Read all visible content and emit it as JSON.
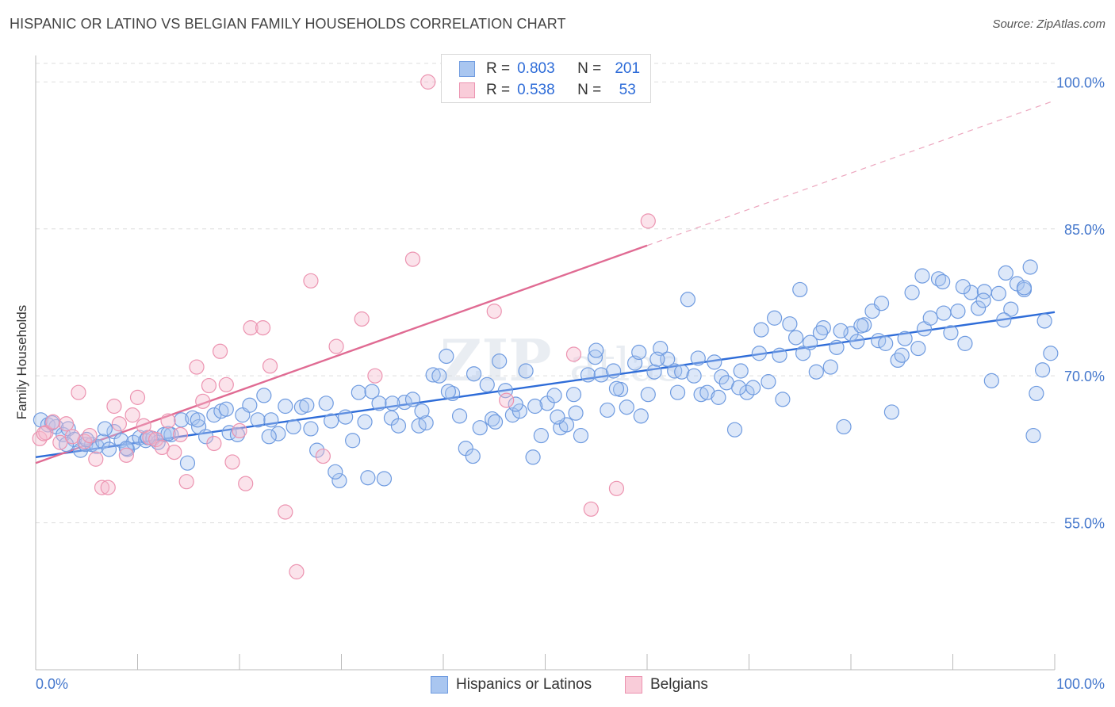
{
  "title": "HISPANIC OR LATINO VS BELGIAN FAMILY HOUSEHOLDS CORRELATION CHART",
  "source": "Source: ZipAtlas.com",
  "watermark": "ZIPatlas",
  "colors": {
    "blue": "#2e6cd8",
    "blue_fill": "#a9c6f0",
    "pink": "#e06b93",
    "pink_fill": "#f5b9cc",
    "grid": "#dddddd",
    "tick_text": "#4477cc"
  },
  "legend": {
    "rows": [
      {
        "r_key": "R =",
        "r_value": "0.803",
        "n_key": "N =",
        "n_value": "201",
        "color": "blue"
      },
      {
        "r_key": "R =",
        "r_value": "0.538",
        "n_key": "N =",
        "n_value": "53",
        "color": "pink"
      }
    ]
  },
  "bottom_legend": [
    "Hispanics or Latinos",
    "Belgians"
  ],
  "chart_data": {
    "type": "scatter",
    "title": "HISPANIC OR LATINO VS BELGIAN FAMILY HOUSEHOLDS CORRELATION CHART",
    "xlabel": "",
    "ylabel": "Family Households",
    "xlim": [
      0,
      100
    ],
    "ylim": [
      40,
      102
    ],
    "x_tick_labels": [
      "0.0%",
      "100.0%"
    ],
    "y_tick_labels": [
      "55.0%",
      "70.0%",
      "85.0%",
      "100.0%"
    ],
    "y_ticks": [
      55,
      70,
      85,
      100
    ],
    "grid": true,
    "legend_position": "top-center",
    "series": [
      {
        "name": "Hispanics or Latinos",
        "color": "blue",
        "trend": {
          "x0": 0,
          "y0": 61.7,
          "x1": 100,
          "y1": 76.5
        },
        "points": [
          [
            0.5,
            65.5
          ],
          [
            1.2,
            65.0
          ],
          [
            2.0,
            64.8
          ],
          [
            2.7,
            64.0
          ],
          [
            3.2,
            64.6
          ],
          [
            3.8,
            63.5
          ],
          [
            4.4,
            62.4
          ],
          [
            4.9,
            63.0
          ],
          [
            5.5,
            63.0
          ],
          [
            6.0,
            62.8
          ],
          [
            6.6,
            63.3
          ],
          [
            7.2,
            62.5
          ],
          [
            7.7,
            64.3
          ],
          [
            8.4,
            63.4
          ],
          [
            9.0,
            62.5
          ],
          [
            9.6,
            63.2
          ],
          [
            10.2,
            63.7
          ],
          [
            10.8,
            63.4
          ],
          [
            11.5,
            63.6
          ],
          [
            12.0,
            63.2
          ],
          [
            12.6,
            64.0
          ],
          [
            13.3,
            64.0
          ],
          [
            14.3,
            65.5
          ],
          [
            14.9,
            61.1
          ],
          [
            15.4,
            65.7
          ],
          [
            16.0,
            64.8
          ],
          [
            16.7,
            63.8
          ],
          [
            17.5,
            66.0
          ],
          [
            18.2,
            66.4
          ],
          [
            19.0,
            64.2
          ],
          [
            19.8,
            64.0
          ],
          [
            20.3,
            66.0
          ],
          [
            21.0,
            67.0
          ],
          [
            21.8,
            65.5
          ],
          [
            22.4,
            68.0
          ],
          [
            23.1,
            65.5
          ],
          [
            23.8,
            64.1
          ],
          [
            24.5,
            66.9
          ],
          [
            25.3,
            64.8
          ],
          [
            26.1,
            66.8
          ],
          [
            27.0,
            64.6
          ],
          [
            27.6,
            62.4
          ],
          [
            28.5,
            67.2
          ],
          [
            29.0,
            65.4
          ],
          [
            29.8,
            59.3
          ],
          [
            30.4,
            65.8
          ],
          [
            31.1,
            63.4
          ],
          [
            31.7,
            68.3
          ],
          [
            32.3,
            65.3
          ],
          [
            33.0,
            68.4
          ],
          [
            33.7,
            67.2
          ],
          [
            34.2,
            59.5
          ],
          [
            34.9,
            65.7
          ],
          [
            35.6,
            64.9
          ],
          [
            36.2,
            67.3
          ],
          [
            37.0,
            67.6
          ],
          [
            37.6,
            64.9
          ],
          [
            38.3,
            65.2
          ],
          [
            39.0,
            70.1
          ],
          [
            39.6,
            70.0
          ],
          [
            40.3,
            72.0
          ],
          [
            40.9,
            68.2
          ],
          [
            41.6,
            65.9
          ],
          [
            42.2,
            62.6
          ],
          [
            42.9,
            61.8
          ],
          [
            43.6,
            64.7
          ],
          [
            44.3,
            69.1
          ],
          [
            44.8,
            65.6
          ],
          [
            45.5,
            71.5
          ],
          [
            46.1,
            68.5
          ],
          [
            46.8,
            66.0
          ],
          [
            47.5,
            66.4
          ],
          [
            48.1,
            70.5
          ],
          [
            48.8,
            61.7
          ],
          [
            49.6,
            63.9
          ],
          [
            50.2,
            67.2
          ],
          [
            50.9,
            68.0
          ],
          [
            51.5,
            64.7
          ],
          [
            52.1,
            65.0
          ],
          [
            52.8,
            68.1
          ],
          [
            53.5,
            63.9
          ],
          [
            54.2,
            70.1
          ],
          [
            54.9,
            71.9
          ],
          [
            55.5,
            70.1
          ],
          [
            56.1,
            66.5
          ],
          [
            56.7,
            70.5
          ],
          [
            57.4,
            68.6
          ],
          [
            58.0,
            66.8
          ],
          [
            58.8,
            71.3
          ],
          [
            59.4,
            65.9
          ],
          [
            60.1,
            68.1
          ],
          [
            60.7,
            70.4
          ],
          [
            61.3,
            72.8
          ],
          [
            62.0,
            71.7
          ],
          [
            62.7,
            70.5
          ],
          [
            63.4,
            70.4
          ],
          [
            64.0,
            77.8
          ],
          [
            64.6,
            70.0
          ],
          [
            65.3,
            68.1
          ],
          [
            65.9,
            68.3
          ],
          [
            66.6,
            71.4
          ],
          [
            67.3,
            69.9
          ],
          [
            67.8,
            69.3
          ],
          [
            68.6,
            64.5
          ],
          [
            69.2,
            70.5
          ],
          [
            69.8,
            68.3
          ],
          [
            70.4,
            68.8
          ],
          [
            71.2,
            74.7
          ],
          [
            71.9,
            69.4
          ],
          [
            72.5,
            75.9
          ],
          [
            73.3,
            67.6
          ],
          [
            74.0,
            75.3
          ],
          [
            74.6,
            73.9
          ],
          [
            75.3,
            72.3
          ],
          [
            76.0,
            73.4
          ],
          [
            76.6,
            70.4
          ],
          [
            77.3,
            74.9
          ],
          [
            78.0,
            70.9
          ],
          [
            78.6,
            72.9
          ],
          [
            79.3,
            64.8
          ],
          [
            80.0,
            74.3
          ],
          [
            80.6,
            73.5
          ],
          [
            81.3,
            75.2
          ],
          [
            82.1,
            76.6
          ],
          [
            82.7,
            73.6
          ],
          [
            83.4,
            73.3
          ],
          [
            84.0,
            66.3
          ],
          [
            84.6,
            71.6
          ],
          [
            85.3,
            73.8
          ],
          [
            86.0,
            78.5
          ],
          [
            86.6,
            72.8
          ],
          [
            87.2,
            74.8
          ],
          [
            87.8,
            75.9
          ],
          [
            88.6,
            79.9
          ],
          [
            89.1,
            76.4
          ],
          [
            89.8,
            74.4
          ],
          [
            90.5,
            76.6
          ],
          [
            91.2,
            73.3
          ],
          [
            91.8,
            78.5
          ],
          [
            92.5,
            76.9
          ],
          [
            93.1,
            78.6
          ],
          [
            93.8,
            69.5
          ],
          [
            94.5,
            78.4
          ],
          [
            95.2,
            80.5
          ],
          [
            95.7,
            76.8
          ],
          [
            96.3,
            79.4
          ],
          [
            97.0,
            78.8
          ],
          [
            97.6,
            81.1
          ],
          [
            98.2,
            68.2
          ],
          [
            99.0,
            75.6
          ],
          [
            99.6,
            72.3
          ],
          [
            1.6,
            65.2
          ],
          [
            3.0,
            63.0
          ],
          [
            5.0,
            63.5
          ],
          [
            6.8,
            64.6
          ],
          [
            8.9,
            62.6
          ],
          [
            11.0,
            63.7
          ],
          [
            13.0,
            64.1
          ],
          [
            15.9,
            65.5
          ],
          [
            18.7,
            66.6
          ],
          [
            22.9,
            63.8
          ],
          [
            26.6,
            67.0
          ],
          [
            29.4,
            60.2
          ],
          [
            32.6,
            59.6
          ],
          [
            35.0,
            67.2
          ],
          [
            37.9,
            66.4
          ],
          [
            40.5,
            68.4
          ],
          [
            43.0,
            70.2
          ],
          [
            45.1,
            65.3
          ],
          [
            47.1,
            67.1
          ],
          [
            49.0,
            66.9
          ],
          [
            51.2,
            65.8
          ],
          [
            53.0,
            66.2
          ],
          [
            55.0,
            72.6
          ],
          [
            57.0,
            68.7
          ],
          [
            59.2,
            72.4
          ],
          [
            61.0,
            71.7
          ],
          [
            63.0,
            68.3
          ],
          [
            65.0,
            71.8
          ],
          [
            67.0,
            67.8
          ],
          [
            69.0,
            68.8
          ],
          [
            71.0,
            72.3
          ],
          [
            73.0,
            72.1
          ],
          [
            75.0,
            78.8
          ],
          [
            77.0,
            74.4
          ],
          [
            79.0,
            74.6
          ],
          [
            81.0,
            75.1
          ],
          [
            83.0,
            77.4
          ],
          [
            85.0,
            72.1
          ],
          [
            87.0,
            80.2
          ],
          [
            89.0,
            79.6
          ],
          [
            91.0,
            79.1
          ],
          [
            93.0,
            77.7
          ],
          [
            95.0,
            75.7
          ],
          [
            97.0,
            79.0
          ],
          [
            98.8,
            70.6
          ],
          [
            97.9,
            63.9
          ]
        ]
      },
      {
        "name": "Belgians",
        "color": "pink",
        "trend": {
          "x0": 0,
          "y0": 61.1,
          "x1": 60,
          "y1": 83.3,
          "dash_x1": 100,
          "dash_y1": 98.1
        },
        "points": [
          [
            0.4,
            63.6
          ],
          [
            1.0,
            64.2
          ],
          [
            1.7,
            65.3
          ],
          [
            2.4,
            63.2
          ],
          [
            3.0,
            65.1
          ],
          [
            3.6,
            63.8
          ],
          [
            4.2,
            68.3
          ],
          [
            4.8,
            63.3
          ],
          [
            5.3,
            63.9
          ],
          [
            5.9,
            61.5
          ],
          [
            6.5,
            58.6
          ],
          [
            7.1,
            58.6
          ],
          [
            7.7,
            66.9
          ],
          [
            8.2,
            65.1
          ],
          [
            8.9,
            61.9
          ],
          [
            9.5,
            66.0
          ],
          [
            10.0,
            67.8
          ],
          [
            10.6,
            64.9
          ],
          [
            11.2,
            63.7
          ],
          [
            11.8,
            63.5
          ],
          [
            12.4,
            62.7
          ],
          [
            13.0,
            65.4
          ],
          [
            13.6,
            62.2
          ],
          [
            14.2,
            64.0
          ],
          [
            14.8,
            59.2
          ],
          [
            15.8,
            70.9
          ],
          [
            16.4,
            67.4
          ],
          [
            17.0,
            69.0
          ],
          [
            17.5,
            63.1
          ],
          [
            18.1,
            72.5
          ],
          [
            18.7,
            69.1
          ],
          [
            19.3,
            61.2
          ],
          [
            20.0,
            64.4
          ],
          [
            20.6,
            59.0
          ],
          [
            21.1,
            74.9
          ],
          [
            22.3,
            74.9
          ],
          [
            23.0,
            71.0
          ],
          [
            24.5,
            56.1
          ],
          [
            25.6,
            50.0
          ],
          [
            27.0,
            79.7
          ],
          [
            28.2,
            61.8
          ],
          [
            29.5,
            73.0
          ],
          [
            32.0,
            75.8
          ],
          [
            33.3,
            70.0
          ],
          [
            37.0,
            81.9
          ],
          [
            38.5,
            100.0
          ],
          [
            45.0,
            76.6
          ],
          [
            46.2,
            67.5
          ],
          [
            52.8,
            72.2
          ],
          [
            54.5,
            56.4
          ],
          [
            57.0,
            58.5
          ],
          [
            60.1,
            85.8
          ],
          [
            0.8,
            64.1
          ]
        ]
      }
    ]
  }
}
